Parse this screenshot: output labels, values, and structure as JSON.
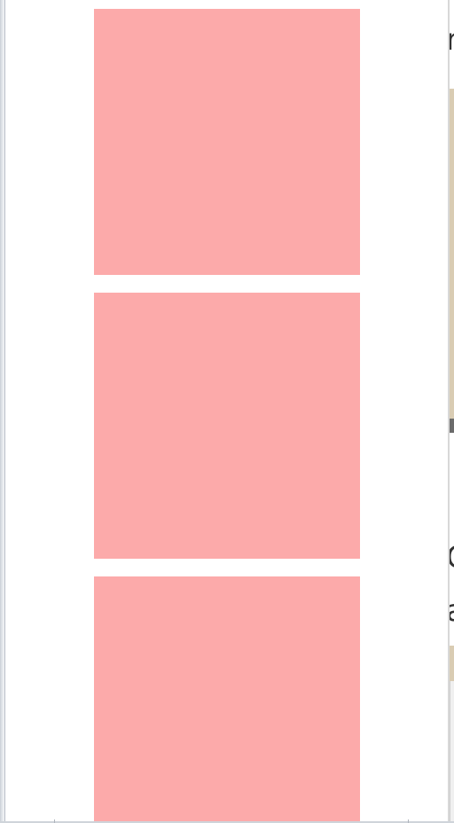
{
  "tiles": [
    {
      "color": "#fcaaaa"
    },
    {
      "color": "#fcaaaa"
    },
    {
      "color": "#fcaaaa"
    }
  ],
  "colors": {
    "tile": "#fcaaaa",
    "panel": "#ffffff",
    "background_strip": "#d9ccb3",
    "scrollbar_thumb": "#6b6b6b"
  },
  "right_strip_fragments": [
    "r",
    "C",
    "a"
  ]
}
